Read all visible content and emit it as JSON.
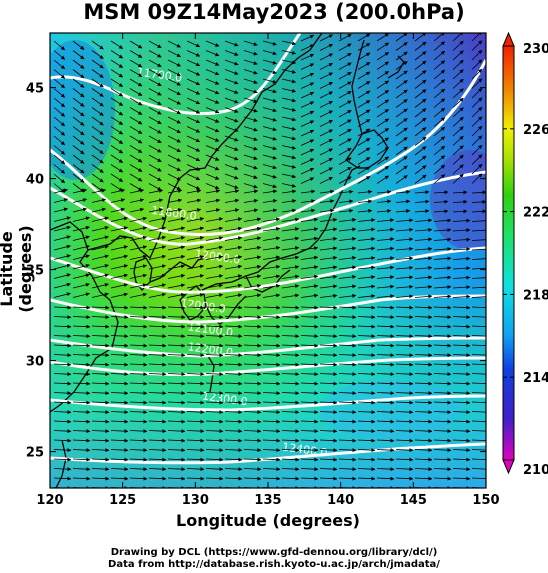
{
  "title": "MSM 09Z14May2023 (200.0hPa)",
  "axes": {
    "xlabel": "Longitude (degrees)",
    "ylabel": "Latitude  (degrees)",
    "xticks": [
      "120",
      "125",
      "130",
      "135",
      "140",
      "145",
      "150"
    ],
    "yticks": [
      "25",
      "30",
      "35",
      "40",
      "45"
    ],
    "xlim": [
      120,
      150
    ],
    "ylim": [
      23,
      48
    ]
  },
  "colorbar": {
    "ticks": [
      "210",
      "214",
      "218",
      "222",
      "226",
      "230"
    ],
    "range": [
      210,
      230
    ],
    "unit_hint": "temperature"
  },
  "contour_labels": [
    {
      "text": "11700.0",
      "lon": 127.5,
      "lat": 45.5
    },
    {
      "text": "11800.0",
      "lon": 128.5,
      "lat": 37.9
    },
    {
      "text": "12000.0",
      "lon": 131.5,
      "lat": 35.5
    },
    {
      "text": "12000.0",
      "lon": 130.5,
      "lat": 32.8
    },
    {
      "text": "12100.0",
      "lon": 131.0,
      "lat": 31.5
    },
    {
      "text": "12200.0",
      "lon": 131.0,
      "lat": 30.4
    },
    {
      "text": "12300.0",
      "lon": 132.0,
      "lat": 27.7
    },
    {
      "text": "12400.0",
      "lon": 137.5,
      "lat": 24.9
    }
  ],
  "credits": {
    "line1": "Drawing by DCL (https://www.gfd-dennou.org/library/dcl/)",
    "line2": "Data from http://database.rish.kyoto-u.ac.jp/arch/jmadata/"
  },
  "colors": {
    "background": "#ffffff",
    "contour": "#ffffff",
    "coast": "#000000",
    "vector": "#000000"
  }
}
